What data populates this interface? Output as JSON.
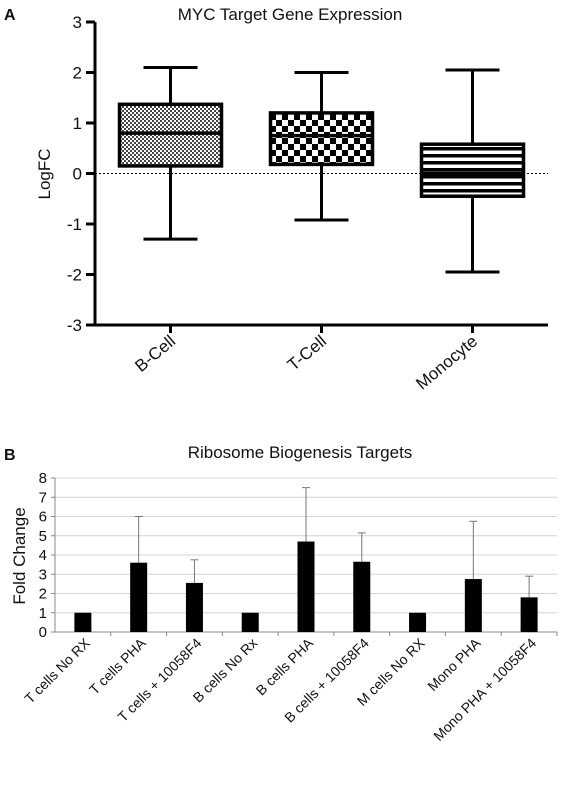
{
  "chart_data": [
    {
      "panel": "A",
      "type": "box",
      "title": "MYC Target Gene Expression",
      "ylabel": "LogFC",
      "ylim": [
        -3,
        3
      ],
      "yticks": [
        3,
        2,
        1,
        0,
        -1,
        -2,
        -3
      ],
      "reference_line": 0,
      "categories": [
        "B-Cell",
        "T-Cell",
        "Monocyte"
      ],
      "boxes": [
        {
          "name": "B-Cell",
          "min": -1.3,
          "q1": 0.15,
          "median": 0.8,
          "q3": 1.37,
          "max": 2.1,
          "pattern": "fine-check"
        },
        {
          "name": "T-Cell",
          "min": -0.92,
          "q1": 0.18,
          "median": 0.75,
          "q3": 1.2,
          "max": 2.0,
          "pattern": "checker"
        },
        {
          "name": "Monocyte",
          "min": -1.95,
          "q1": -0.45,
          "median": 0.0,
          "q3": 0.58,
          "max": 2.05,
          "pattern": "stripes"
        }
      ]
    },
    {
      "panel": "B",
      "type": "bar",
      "title": "Ribosome Biogenesis Targets",
      "ylabel": "Fold Change",
      "ylim": [
        0,
        8
      ],
      "yticks": [
        0,
        1,
        2,
        3,
        4,
        5,
        6,
        7,
        8
      ],
      "grid": true,
      "categories": [
        "T cells No RX",
        "T cells PHA",
        "T cells + 10058F4",
        "B cells No Rx",
        "B cells PHA",
        "B cells + 10058F4",
        "M cells No RX",
        "Mono PHA",
        "Mono PHA + 10058F4"
      ],
      "values": [
        1.0,
        3.6,
        2.55,
        1.0,
        4.7,
        3.65,
        1.0,
        2.75,
        1.8
      ],
      "errors": [
        0,
        2.4,
        1.2,
        0,
        2.8,
        1.5,
        0,
        3.0,
        1.1
      ],
      "bar_color": "#000000"
    }
  ]
}
